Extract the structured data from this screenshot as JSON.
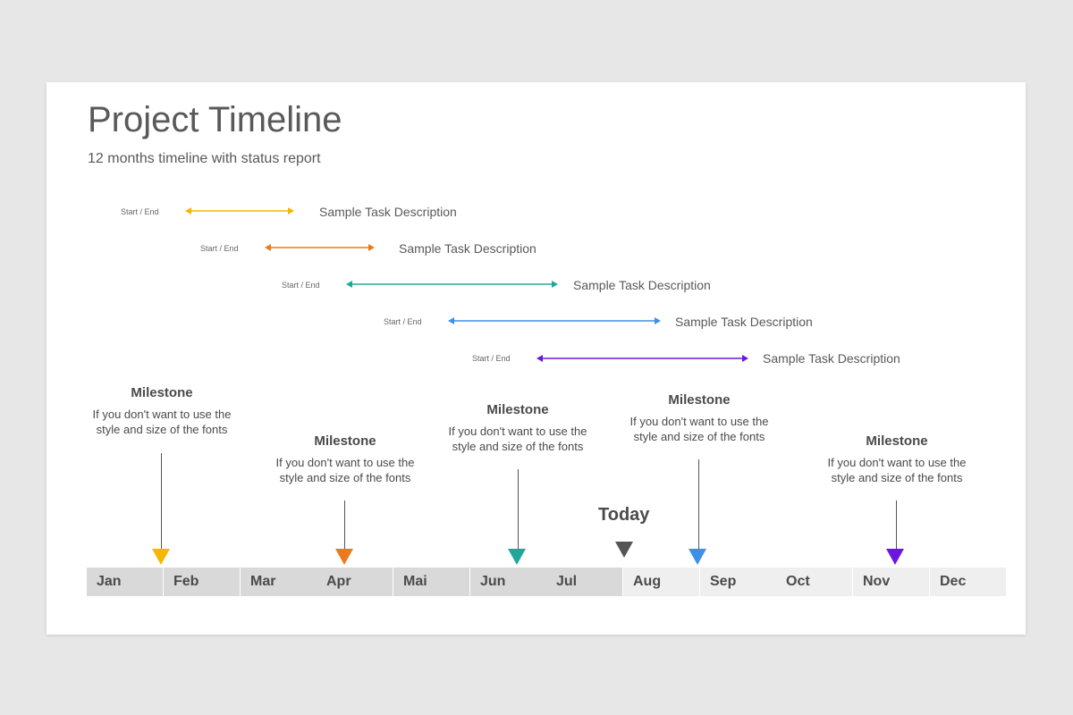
{
  "title": "Project Timeline",
  "subtitle": "12 months timeline with status report",
  "tasks": [
    {
      "start_end_label": "Start / End",
      "description": "Sample Task Description",
      "color": "#f5b800"
    },
    {
      "start_end_label": "Start / End",
      "description": "Sample Task Description",
      "color": "#ec7a1c"
    },
    {
      "start_end_label": "Start / End",
      "description": "Sample Task Description",
      "color": "#1fa89a"
    },
    {
      "start_end_label": "Start / End",
      "description": "Sample Task Description",
      "color": "#3f8fe6"
    },
    {
      "start_end_label": "Start / End",
      "description": "Sample Task Description",
      "color": "#6d16df"
    }
  ],
  "milestones": [
    {
      "title": "Milestone",
      "text": "If you don't want to use the style and size of the fonts",
      "color": "#f5b800",
      "month": "Feb"
    },
    {
      "title": "Milestone",
      "text": "If you don't want to use the style and size of the fonts",
      "color": "#ec7a1c",
      "month": "Apr"
    },
    {
      "title": "Milestone",
      "text": "If you don't want to use the style and size of the fonts",
      "color": "#1fa89a",
      "month": "Jun"
    },
    {
      "title": "Milestone",
      "text": "If you don't want to use the style and size of the fonts",
      "color": "#3f8fe6",
      "month": "Sep"
    },
    {
      "title": "Milestone",
      "text": "If you don't want to use the style and size of the fonts",
      "color": "#6d16df",
      "month": "Nov"
    }
  ],
  "today": {
    "label": "Today",
    "color": "#555555"
  },
  "months": [
    "Jan",
    "Feb",
    "Mar",
    "Apr",
    "Mai",
    "Jun",
    "Jul",
    "Aug",
    "Sep",
    "Oct",
    "Nov",
    "Dec"
  ],
  "current_month_index": 7,
  "colors": {
    "past_month_bg": "#d9d9d9",
    "future_month_bg": "#efefef"
  }
}
